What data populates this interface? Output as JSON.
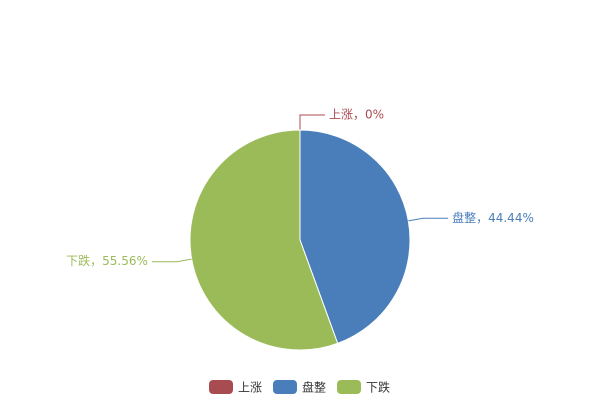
{
  "chart_data": {
    "type": "pie",
    "categories": [
      "上涨",
      "盘整",
      "下跌"
    ],
    "values": [
      0,
      44.44,
      55.56
    ],
    "value_labels": [
      "上涨，0%",
      "盘整，44.44%",
      "下跌，55.56%"
    ],
    "colors": [
      "#a94c51",
      "#4a7ebb",
      "#9bbb59"
    ]
  }
}
